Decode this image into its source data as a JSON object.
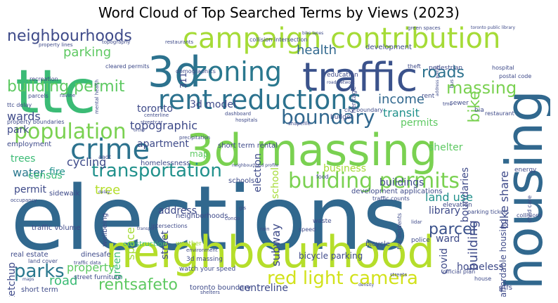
{
  "title": "Word Cloud of Top Searched Terms by Views (2023)",
  "colors": {
    "c_purple_dark": "#472d7b",
    "c_purple": "#46327e",
    "c_blue_dark": "#365c8d",
    "c_blue": "#31688e",
    "c_teal": "#277f8e",
    "c_teal2": "#21918c",
    "c_green_teal": "#1fa187",
    "c_green": "#3bbb75",
    "c_green2": "#5ec962",
    "c_lime": "#7ad151",
    "c_lime2": "#a5db36",
    "c_yellow": "#d2e21b"
  },
  "words": [
    {
      "text": "elections",
      "color": "#31688e"
    },
    {
      "text": "neighbourhood",
      "color": "#b5de2b"
    },
    {
      "text": "3d massing",
      "color": "#7ad151"
    },
    {
      "text": "ttc",
      "color": "#3bbb75"
    },
    {
      "text": "housing",
      "color": "#31688e"
    },
    {
      "text": "traffic",
      "color": "#3b528b"
    },
    {
      "text": "3d",
      "color": "#2c728e"
    },
    {
      "text": "campaign contribution",
      "color": "#a5db36"
    },
    {
      "text": "zoning",
      "color": "#2a788e"
    },
    {
      "text": "rent reductions",
      "color": "#2c728e"
    },
    {
      "text": "crime",
      "color": "#2c728e"
    },
    {
      "text": "population",
      "color": "#7ad151"
    },
    {
      "text": "building permits",
      "color": "#7ad151"
    },
    {
      "text": "transportation",
      "color": "#21918c"
    },
    {
      "text": "boundary",
      "color": "#31688e"
    },
    {
      "text": "neighbourhoods",
      "color": "#3e4a89"
    },
    {
      "text": "red light camera",
      "color": "#d2e21b"
    },
    {
      "text": "parks",
      "color": "#2a788e"
    },
    {
      "text": "rentsafeto",
      "color": "#5ec962"
    },
    {
      "text": "building permit",
      "color": "#5ec962"
    },
    {
      "text": "roads",
      "color": "#2c728e"
    },
    {
      "text": "massing",
      "color": "#7ad151"
    },
    {
      "text": "bike",
      "color": "#7ad151"
    },
    {
      "text": "parking",
      "color": "#5ec962"
    },
    {
      "text": "health",
      "color": "#31688e"
    },
    {
      "text": "topographic",
      "color": "#3e4a89"
    },
    {
      "text": "income",
      "color": "#31688e"
    },
    {
      "text": "transit",
      "color": "#21918c"
    },
    {
      "text": "tree",
      "color": "#b5de2b"
    },
    {
      "text": "parcel",
      "color": "#3b528b"
    },
    {
      "text": "road",
      "color": "#3bbb75"
    },
    {
      "text": "fire",
      "color": "#21918c"
    },
    {
      "text": "water",
      "color": "#2a788e"
    },
    {
      "text": "cycling",
      "color": "#3e4a89"
    },
    {
      "text": "census",
      "color": "#3bbb75"
    },
    {
      "text": "wards",
      "color": "#3e4a89"
    },
    {
      "text": "park",
      "color": "#3e4a89"
    },
    {
      "text": "trees",
      "color": "#3bbb75"
    },
    {
      "text": "map",
      "color": "#5ec962"
    },
    {
      "text": "apartment",
      "color": "#3e4a89"
    },
    {
      "text": "address",
      "color": "#3e4a89"
    },
    {
      "text": "permits",
      "color": "#5ec962"
    },
    {
      "text": "shelter",
      "color": "#5ec962"
    },
    {
      "text": "bike share",
      "color": "#3e4a89"
    },
    {
      "text": "building",
      "color": "#3e4a89"
    },
    {
      "text": "affordable housing",
      "color": "#3e4a89"
    },
    {
      "text": "boundaries",
      "color": "#3e4a89"
    },
    {
      "text": "land use",
      "color": "#21918c"
    },
    {
      "text": "library",
      "color": "#3e4a89"
    },
    {
      "text": "ward",
      "color": "#3e4a89"
    },
    {
      "text": "covid",
      "color": "#3e4a89"
    },
    {
      "text": "homeless",
      "color": "#3e4a89"
    },
    {
      "text": "centreline",
      "color": "#3e4a89"
    },
    {
      "text": "property",
      "color": "#5ec962"
    },
    {
      "text": "sketchup",
      "color": "#3e4a89"
    },
    {
      "text": "permit",
      "color": "#3e4a89"
    },
    {
      "text": "toronto",
      "color": "#3e4a89"
    },
    {
      "text": "3d model",
      "color": "#3e4a89"
    },
    {
      "text": "election",
      "color": "#3e4a89"
    },
    {
      "text": "school",
      "color": "#a5db36"
    },
    {
      "text": "subway",
      "color": "#3e4a89"
    },
    {
      "text": "street",
      "color": "#3e4a89"
    },
    {
      "text": "space",
      "color": "#a5db36"
    },
    {
      "text": "green",
      "color": "#3bbb75"
    },
    {
      "text": "business",
      "color": "#a5db36"
    },
    {
      "text": "buildings",
      "color": "#3e4a89"
    },
    {
      "text": "homelessness",
      "color": "#3e4a89"
    },
    {
      "text": "employment",
      "color": "#3e4a89"
    },
    {
      "text": "short term rental",
      "color": "#3e4a89"
    },
    {
      "text": "bicycle parking",
      "color": "#3e4a89"
    },
    {
      "text": "construction",
      "color": "#3bbb75"
    },
    {
      "text": "development",
      "color": "#3e4a89"
    },
    {
      "text": "development applications",
      "color": "#3e4a89"
    },
    {
      "text": "schools",
      "color": "#3e4a89"
    },
    {
      "text": "traffic volume",
      "color": "#3e4a89"
    },
    {
      "text": "neighborhoods",
      "color": "#3e4a89"
    },
    {
      "text": "wellbeing",
      "color": "#3e4a89"
    },
    {
      "text": "sidewalk",
      "color": "#3e4a89"
    },
    {
      "text": "real estate",
      "color": "#3e4a89"
    },
    {
      "text": "short term",
      "color": "#3e4a89"
    },
    {
      "text": "street furniture",
      "color": "#3e4a89"
    },
    {
      "text": "3d massing",
      "color": "#3e4a89"
    },
    {
      "text": "watch your speed",
      "color": "#3e4a89"
    },
    {
      "text": "dinesafe",
      "color": "#3e4a89"
    },
    {
      "text": "toronto boundary",
      "color": "#3e4a89"
    },
    {
      "text": "bicycle",
      "color": "#3e4a89"
    },
    {
      "text": "police",
      "color": "#3e4a89"
    },
    {
      "text": "gtfs",
      "color": "#3e4a89"
    },
    {
      "text": "waste",
      "color": "#3e4a89"
    },
    {
      "text": "rain",
      "color": "#3e4a89"
    },
    {
      "text": "gis",
      "color": "#3e4a89"
    },
    {
      "text": "condo",
      "color": "#3e4a89"
    },
    {
      "text": "elevation",
      "color": "#3e4a89"
    },
    {
      "text": "intersections",
      "color": "#3e4a89"
    },
    {
      "text": "weather",
      "color": "#a5db36"
    },
    {
      "text": "budget",
      "color": "#3e4a89"
    },
    {
      "text": "official plan",
      "color": "#3e4a89"
    },
    {
      "text": "heritage",
      "color": "#3e4a89"
    },
    {
      "text": "city boundary",
      "color": "#3e4a89"
    },
    {
      "text": "sewer",
      "color": "#3e4a89"
    },
    {
      "text": "bia",
      "color": "#3e4a89"
    },
    {
      "text": "restaurant",
      "color": "#3e4a89"
    },
    {
      "text": "hospital",
      "color": "#3e4a89"
    },
    {
      "text": "postal code",
      "color": "#3e4a89"
    },
    {
      "text": "rent",
      "color": "#3e4a89"
    },
    {
      "text": "pedestrian",
      "color": "#3e4a89"
    },
    {
      "text": "theft",
      "color": "#3e4a89"
    },
    {
      "text": "education",
      "color": "#3e4a89"
    },
    {
      "text": "collision",
      "color": "#3e4a89"
    },
    {
      "text": "intersection",
      "color": "#3e4a89"
    },
    {
      "text": "green spaces",
      "color": "#3e4a89"
    },
    {
      "text": "toronto public library",
      "color": "#3e4a89"
    },
    {
      "text": "property lines",
      "color": "#3e4a89"
    },
    {
      "text": "topography",
      "color": "#3e4a89"
    },
    {
      "text": "restaurants",
      "color": "#3e4a89"
    },
    {
      "text": "cleared permits",
      "color": "#3e4a89"
    },
    {
      "text": "demographics",
      "color": "#3e4a89"
    },
    {
      "text": "recreation",
      "color": "#3e4a89"
    },
    {
      "text": "parcels",
      "color": "#3e4a89"
    },
    {
      "text": "ravine",
      "color": "#3e4a89"
    },
    {
      "text": "ttc delay",
      "color": "#3e4a89"
    },
    {
      "text": "311",
      "color": "#3e4a89"
    },
    {
      "text": "mental health",
      "color": "#3e4a89"
    },
    {
      "text": "property boundaries",
      "color": "#3e4a89"
    },
    {
      "text": "dashboard",
      "color": "#3e4a89"
    },
    {
      "text": "centerline",
      "color": "#3e4a89"
    },
    {
      "text": "streetcar",
      "color": "#3e4a89"
    },
    {
      "text": "hospitals",
      "color": "#3e4a89"
    },
    {
      "text": "aadt",
      "color": "#3e4a89"
    },
    {
      "text": "shapefile",
      "color": "#3e4a89"
    },
    {
      "text": "food",
      "color": "#3e4a89"
    },
    {
      "text": "traffic counts",
      "color": "#3e4a89"
    },
    {
      "text": "lidar",
      "color": "#3e4a89"
    },
    {
      "text": "energy",
      "color": "#3e4a89"
    },
    {
      "text": "child care",
      "color": "#3e4a89"
    },
    {
      "text": "collisions",
      "color": "#3e4a89"
    },
    {
      "text": "parking tickets",
      "color": "#3e4a89"
    },
    {
      "text": "fire incidents",
      "color": "#3e4a89"
    },
    {
      "text": "land cover",
      "color": "#3e4a89"
    },
    {
      "text": "traffic data",
      "color": "#3e4a89"
    },
    {
      "text": "maps",
      "color": "#3e4a89"
    },
    {
      "text": "shelters",
      "color": "#3e4a89"
    },
    {
      "text": "streets",
      "color": "#3e4a89"
    },
    {
      "text": "density",
      "color": "#3e4a89"
    },
    {
      "text": "house",
      "color": "#3e4a89"
    },
    {
      "text": "speed",
      "color": "#3e4a89"
    },
    {
      "text": "bus",
      "color": "#3e4a89"
    },
    {
      "text": "tmc",
      "color": "#3e4a89"
    },
    {
      "text": "neighbourhood profile",
      "color": "#3e4a89"
    },
    {
      "text": "ortho",
      "color": "#3e4a89"
    },
    {
      "text": "precipitation",
      "color": "#3e4a89"
    },
    {
      "text": "delay",
      "color": "#3e4a89"
    },
    {
      "text": "environment",
      "color": "#3e4a89"
    },
    {
      "text": "transport",
      "color": "#3e4a89"
    },
    {
      "text": "occupancy",
      "color": "#3e4a89"
    },
    {
      "text": "address points",
      "color": "#3e4a89"
    },
    {
      "text": "road network",
      "color": "#3e4a89"
    },
    {
      "text": "bike lanes",
      "color": "#3e4a89"
    }
  ]
}
